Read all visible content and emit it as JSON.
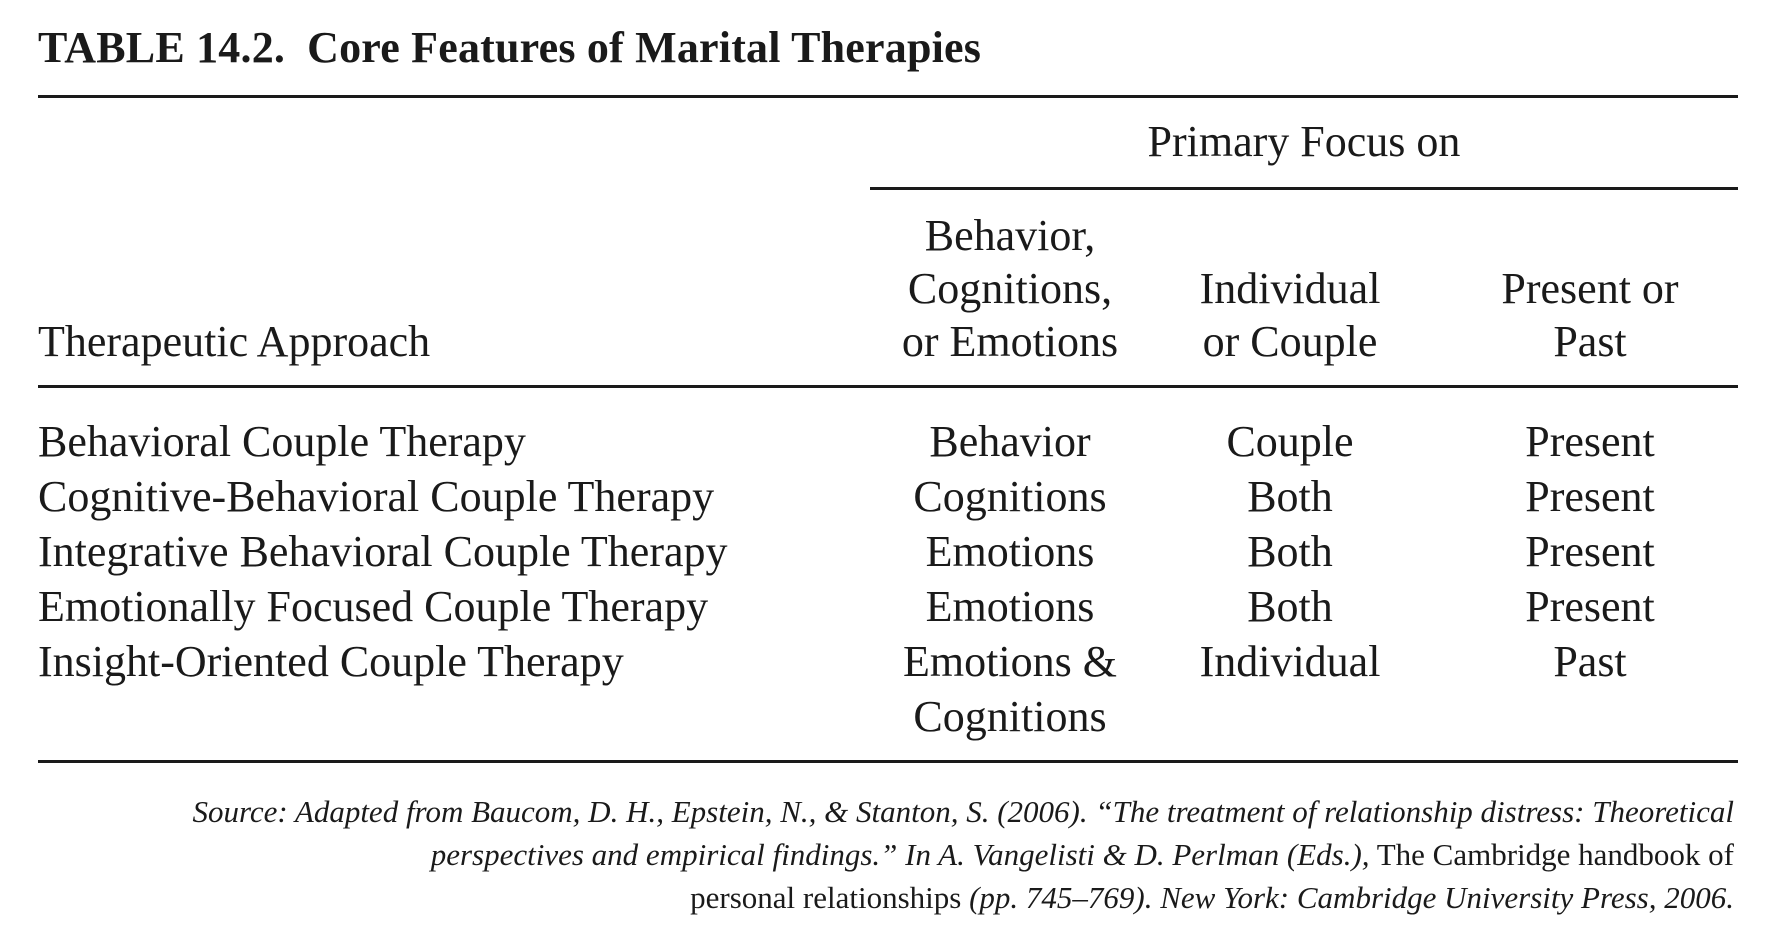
{
  "title": {
    "label": "TABLE 14.2.",
    "text": "Core Features of Marital Therapies"
  },
  "header": {
    "group_label": "Primary Focus on",
    "col_approach": "Therapeutic Approach",
    "col1": [
      "Behavior,",
      "Cognitions,",
      "or Emotions"
    ],
    "col2": [
      "Individual",
      "or Couple"
    ],
    "col3": [
      "Present or",
      "Past"
    ]
  },
  "rows": [
    {
      "approach": "Behavioral Couple Therapy",
      "focus": "Behavior",
      "unit": "Couple",
      "time": "Present"
    },
    {
      "approach": "Cognitive-Behavioral Couple Therapy",
      "focus": "Cognitions",
      "unit": "Both",
      "time": "Present"
    },
    {
      "approach": "Integrative Behavioral Couple Therapy",
      "focus": "Emotions",
      "unit": "Both",
      "time": "Present"
    },
    {
      "approach": "Emotionally Focused Couple Therapy",
      "focus": "Emotions",
      "unit": "Both",
      "time": "Present"
    },
    {
      "approach": "Insight-Oriented Couple Therapy",
      "focus": "Emotions &",
      "focus_line2": "Cognitions",
      "unit": "Individual",
      "time": "Past"
    }
  ],
  "source": {
    "part1": "Source: Adapted from Baucom, D. H., Epstein, N., & Stanton, S. (2006). “The treatment of relationship distress: Theoretical perspectives and empirical findings.” In A. Vangelisti & D. Perlman (Eds.),",
    "book_title_1": "The Cambridge handbook of",
    "book_title_2": "personal relationships",
    "part2": "(pp. 745–769). New York: Cambridge University Press, 2006."
  }
}
